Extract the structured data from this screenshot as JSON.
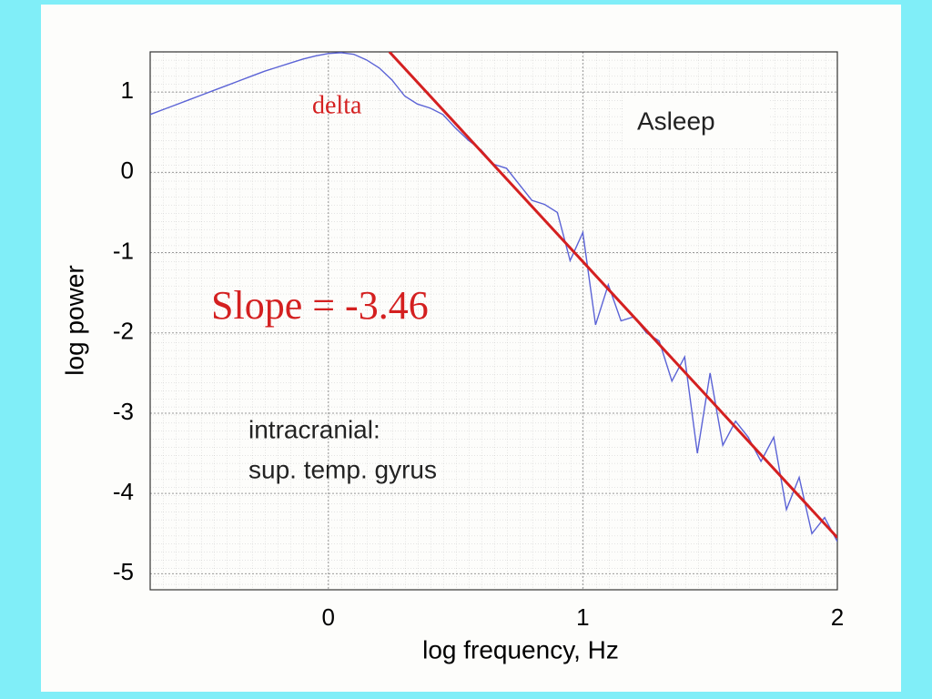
{
  "chart_data": {
    "type": "line",
    "xlabel": "log frequency, Hz",
    "ylabel": "log power",
    "xlim": [
      -0.7,
      2
    ],
    "ylim": [
      -5.2,
      1.5
    ],
    "xticks": [
      0,
      1,
      2
    ],
    "yticks": [
      1,
      0,
      -1,
      -2,
      -3,
      -4,
      -5
    ],
    "grid": true,
    "annotations": [
      "delta",
      "Asleep",
      "Slope = -3.46",
      "intracranial:",
      "sup. temp. gyrus"
    ],
    "series": [
      {
        "color": "#5b63d6",
        "x": [
          -0.7,
          -0.65,
          -0.6,
          -0.55,
          -0.5,
          -0.45,
          -0.4,
          -0.35,
          -0.3,
          -0.25,
          -0.2,
          -0.15,
          -0.1,
          -0.05,
          0,
          0.05,
          0.1,
          0.15,
          0.2,
          0.25,
          0.3,
          0.35,
          0.4,
          0.45,
          0.5,
          0.55,
          0.6,
          0.65,
          0.7,
          0.75,
          0.8,
          0.85,
          0.9,
          0.95,
          1.0,
          1.05,
          1.1,
          1.15,
          1.2,
          1.25,
          1.3,
          1.35,
          1.4,
          1.45,
          1.5,
          1.55,
          1.6,
          1.65,
          1.7,
          1.75,
          1.8,
          1.85,
          1.9,
          1.95,
          2.0
        ],
        "values": [
          0.72,
          0.78,
          0.84,
          0.9,
          0.96,
          1.02,
          1.08,
          1.14,
          1.2,
          1.26,
          1.31,
          1.36,
          1.41,
          1.45,
          1.48,
          1.49,
          1.47,
          1.4,
          1.3,
          1.15,
          0.95,
          0.85,
          0.8,
          0.72,
          0.55,
          0.4,
          0.28,
          0.1,
          0.05,
          -0.15,
          -0.35,
          -0.4,
          -0.5,
          -1.1,
          -0.75,
          -1.9,
          -1.4,
          -1.85,
          -1.8,
          -2.0,
          -2.1,
          -2.6,
          -2.3,
          -3.5,
          -2.5,
          -3.4,
          -3.1,
          -3.3,
          -3.6,
          -3.3,
          -4.2,
          -3.8,
          -4.5,
          -4.3,
          -4.6
        ]
      },
      {
        "color": "#d42020",
        "x": [
          0.24,
          2
        ],
        "values": [
          1.5,
          -4.55
        ]
      }
    ]
  }
}
